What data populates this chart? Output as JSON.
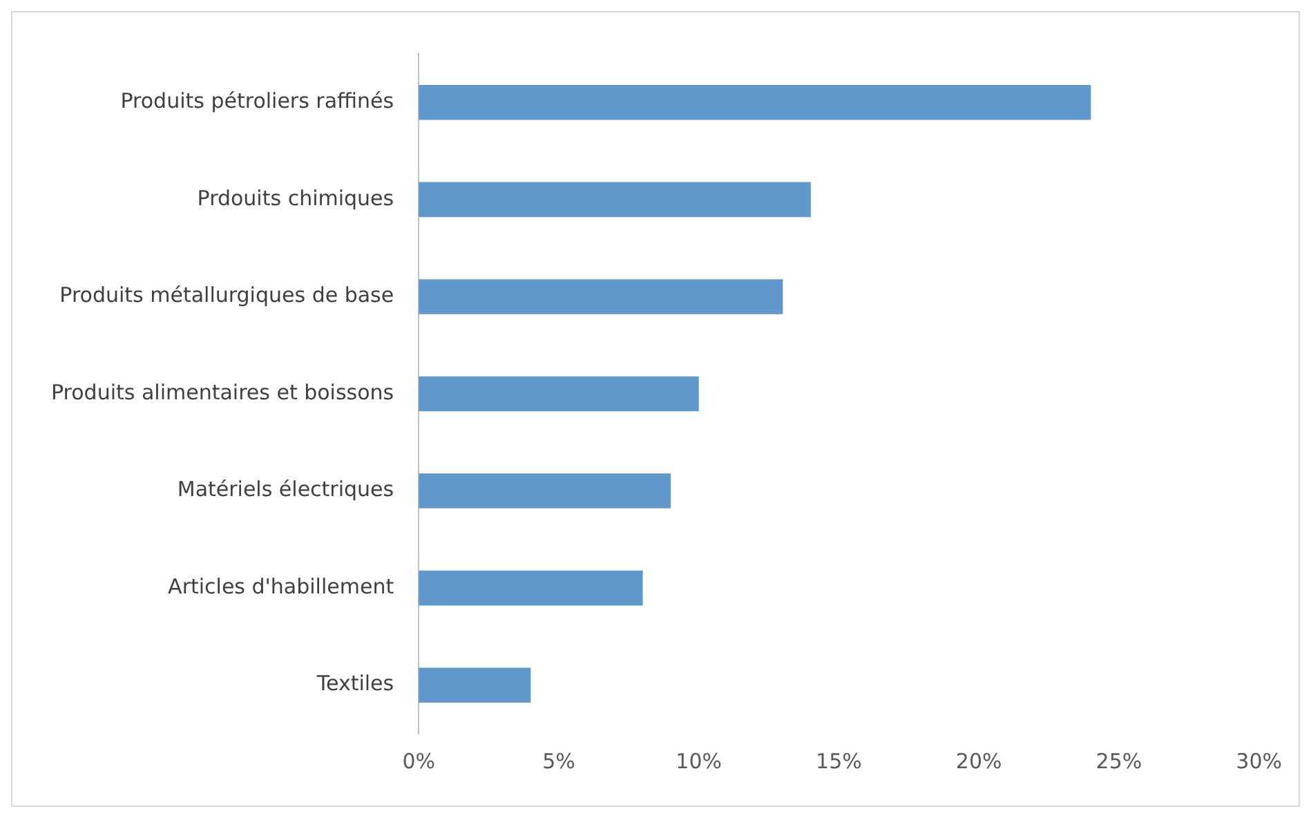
{
  "chart_data": {
    "type": "bar",
    "orientation": "horizontal",
    "categories": [
      "Produits pétroliers raffinés",
      "Prdouits chimiques",
      "Produits métallurgiques de base",
      "Produits alimentaires et boissons",
      "Matériels électriques",
      "Articles d'habillement",
      "Textiles"
    ],
    "values": [
      24,
      14,
      13,
      10,
      9,
      8,
      4
    ],
    "color": "#6198cc",
    "xlim": [
      0,
      30
    ],
    "xticks": [
      {
        "value": 0,
        "label": "0%"
      },
      {
        "value": 5,
        "label": "5%"
      },
      {
        "value": 10,
        "label": "10%"
      },
      {
        "value": 15,
        "label": "15%"
      },
      {
        "value": 20,
        "label": "20%"
      },
      {
        "value": 25,
        "label": "25%"
      },
      {
        "value": 30,
        "label": "30%"
      }
    ],
    "grid": false,
    "legend": false
  }
}
